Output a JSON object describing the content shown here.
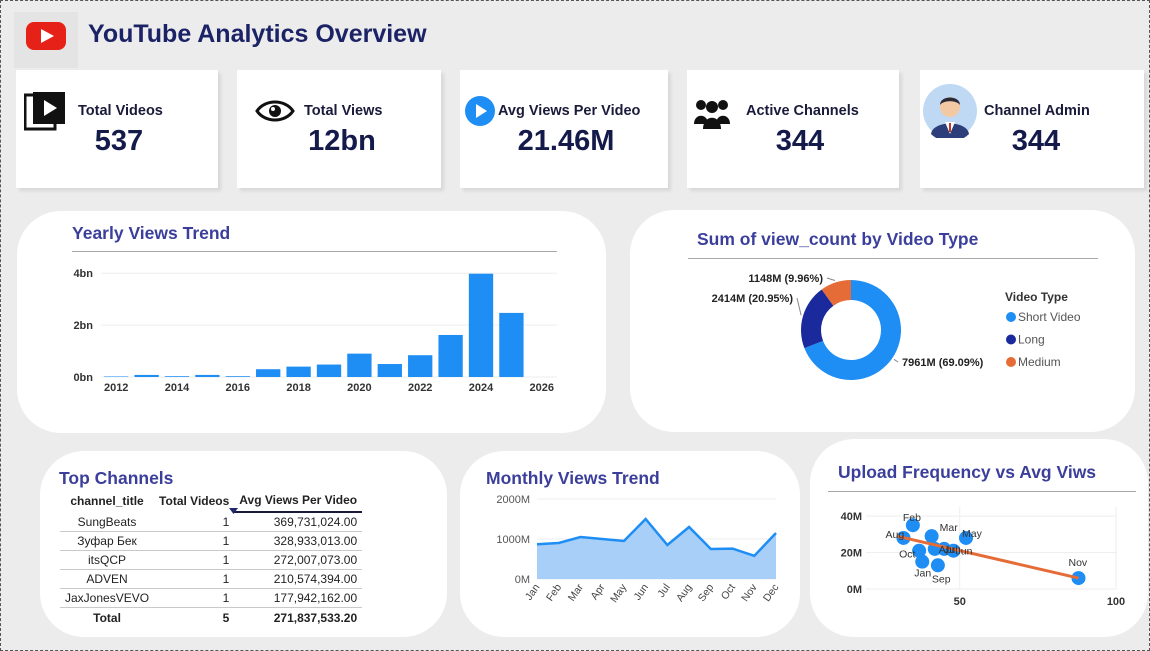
{
  "header": {
    "title": "YouTube Analytics Overview",
    "logo_icon": "youtube-logo-icon"
  },
  "kpis": [
    {
      "label": "Total Videos",
      "value": "537",
      "icon": "video-library-icon"
    },
    {
      "label": "Total Views",
      "value": "12bn",
      "icon": "eye-icon"
    },
    {
      "label": "Avg Views Per Video",
      "value": "21.46M",
      "icon": "play-circle-icon"
    },
    {
      "label": "Active Channels",
      "value": "344",
      "icon": "users-group-icon"
    },
    {
      "label": "Channel Admin",
      "value": "344",
      "icon": "admin-avatar-icon"
    }
  ],
  "yearly": {
    "title": "Yearly Views Trend",
    "chart_data": {
      "type": "bar",
      "x": [
        2012,
        2013,
        2014,
        2015,
        2016,
        2017,
        2018,
        2019,
        2020,
        2021,
        2022,
        2023,
        2024,
        2025
      ],
      "values": [
        0.02,
        0.08,
        0.03,
        0.08,
        0.03,
        0.3,
        0.4,
        0.48,
        0.9,
        0.5,
        0.84,
        1.62,
        3.98,
        2.47
      ],
      "unit": "bn",
      "y_ticks": [
        "0bn",
        "2bn",
        "4bn"
      ],
      "x_ticks": [
        "2012",
        "2014",
        "2016",
        "2018",
        "2020",
        "2022",
        "2024",
        "2026"
      ],
      "ylim": [
        0,
        4.2
      ],
      "color": "#1e8ef5"
    }
  },
  "videotype": {
    "title": "Sum of view_count by Video Type",
    "legend_title": "Video Type",
    "chart_data": {
      "type": "pie",
      "slices": [
        {
          "name": "Short Video",
          "value": 7961,
          "label": "7961M (69.09%)",
          "color": "#1e8ef5"
        },
        {
          "name": "Long",
          "value": 2414,
          "label": "2414M (20.95%)",
          "color": "#1a2a9c"
        },
        {
          "name": "Medium",
          "value": 1148,
          "label": "1148M (9.96%)",
          "color": "#e66c37"
        }
      ]
    }
  },
  "topchannels": {
    "title": "Top Channels",
    "columns": [
      "channel_title",
      "Total Videos",
      "Avg Views Per Video"
    ],
    "rows": [
      [
        "SungBeats",
        "1",
        "369,731,024.00"
      ],
      [
        "Зуфар Бек",
        "1",
        "328,933,013.00"
      ],
      [
        "itsQCP",
        "1",
        "272,007,073.00"
      ],
      [
        "ADVEN",
        "1",
        "210,574,394.00"
      ],
      [
        "JaxJonesVEVO",
        "1",
        "177,942,162.00"
      ]
    ],
    "total": [
      "Total",
      "5",
      "271,837,533.20"
    ]
  },
  "monthly": {
    "title": "Monthly Views Trend",
    "chart_data": {
      "type": "area",
      "categories": [
        "Jan",
        "Feb",
        "Mar",
        "Apr",
        "May",
        "Jun",
        "Jul",
        "Aug",
        "Sep",
        "Oct",
        "Nov",
        "Dec"
      ],
      "values": [
        870,
        900,
        1050,
        1000,
        950,
        1500,
        850,
        1300,
        750,
        760,
        580,
        1150
      ],
      "unit": "M",
      "y_ticks": [
        "0M",
        "1000M",
        "2000M"
      ],
      "ylim": [
        0,
        2000
      ],
      "color": "#1e8ef5"
    }
  },
  "upload": {
    "title": "Upload Frequency vs Avg Viws",
    "chart_data": {
      "type": "scatter",
      "points": [
        {
          "label": "Feb",
          "x": 35,
          "y": 35
        },
        {
          "label": "Aug",
          "x": 32,
          "y": 28
        },
        {
          "label": "Mar",
          "x": 41,
          "y": 29
        },
        {
          "label": "May",
          "x": 52,
          "y": 28
        },
        {
          "label": "Oct",
          "x": 37,
          "y": 21
        },
        {
          "label": "Jan",
          "x": 38,
          "y": 15
        },
        {
          "label": "Apr",
          "x": 42,
          "y": 22
        },
        {
          "label": "Jul",
          "x": 45,
          "y": 22
        },
        {
          "label": "Jun",
          "x": 48,
          "y": 21
        },
        {
          "label": "Sep",
          "x": 43,
          "y": 13
        },
        {
          "label": "Nov",
          "x": 88,
          "y": 6
        }
      ],
      "trend": [
        [
          30,
          29
        ],
        [
          88,
          6
        ]
      ],
      "x_ticks": [
        "50",
        "100"
      ],
      "y_ticks": [
        "0M",
        "20M",
        "40M"
      ],
      "xlim": [
        20,
        100
      ],
      "ylim": [
        0,
        45
      ],
      "point_color": "#1e8ef5",
      "trend_color": "#e66c37"
    }
  }
}
